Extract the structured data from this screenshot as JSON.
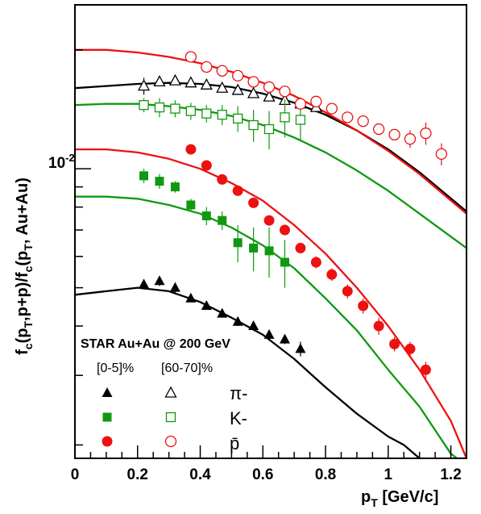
{
  "chart_data": {
    "type": "scatter",
    "xlabel": "p_T [GeV/c]",
    "ylabel": "f_c(p_T,p+p)/f_c(p_T, Au+Au)",
    "xlim": [
      0,
      1.25
    ],
    "ylim": [
      0.00185,
      0.026
    ],
    "yscale": "log",
    "x_ticks": [
      "0",
      "0.2",
      "0.4",
      "0.6",
      "0.8",
      "1",
      "1.2"
    ],
    "x_tick_values": [
      0,
      0.2,
      0.4,
      0.6,
      0.8,
      1.0,
      1.2
    ],
    "y_tick_label": "10^-2",
    "annotation": "STAR Au+Au @ 200 GeV",
    "legend": {
      "col_central": "[0-5]%",
      "col_peripheral": "[60-70]%",
      "species": [
        "π-",
        "K-",
        "p̄"
      ]
    },
    "series": [
      {
        "name": "π-",
        "centrality": "[0-5]%",
        "marker": "triangle",
        "filled": true,
        "color": "#000000",
        "x": [
          0.22,
          0.27,
          0.32,
          0.37,
          0.42,
          0.47,
          0.52,
          0.57,
          0.62,
          0.67,
          0.72
        ],
        "y": [
          0.0051,
          0.0052,
          0.005,
          0.0047,
          0.0045,
          0.0043,
          0.0041,
          0.004,
          0.0038,
          0.0037,
          0.0035
        ],
        "err": [
          0.00015,
          0.00015,
          0.00015,
          0.0001,
          0.0001,
          0.0001,
          0.0001,
          0.0001,
          0.0001,
          0.0001,
          0.00015
        ]
      },
      {
        "name": "π-",
        "centrality": "[60-70]%",
        "marker": "triangle",
        "filled": false,
        "color": "#000000",
        "x": [
          0.22,
          0.27,
          0.32,
          0.37,
          0.42,
          0.47,
          0.52,
          0.57,
          0.62,
          0.67,
          0.72,
          0.77
        ],
        "y": [
          0.0162,
          0.0166,
          0.0167,
          0.0165,
          0.0163,
          0.016,
          0.0158,
          0.0155,
          0.0152,
          0.0149,
          0.0146,
          0.0143
        ],
        "err": [
          0.0008,
          0.0004,
          0.0004,
          0.0003,
          0.0003,
          0.0003,
          0.0003,
          0.0003,
          0.0003,
          0.0003,
          0.0003,
          0.0003
        ]
      },
      {
        "name": "K-",
        "centrality": "[0-5]%",
        "marker": "square",
        "filled": true,
        "color": "#109910",
        "x": [
          0.22,
          0.27,
          0.32,
          0.37,
          0.42,
          0.47,
          0.52,
          0.57,
          0.62,
          0.67
        ],
        "y": [
          0.0096,
          0.0093,
          0.009,
          0.0081,
          0.0076,
          0.0074,
          0.0065,
          0.0063,
          0.0062,
          0.0058
        ],
        "err": [
          0.0004,
          0.0004,
          0.0003,
          0.0003,
          0.0004,
          0.0004,
          0.0007,
          0.0008,
          0.0009,
          0.0008
        ]
      },
      {
        "name": "K-",
        "centrality": "[60-70]%",
        "marker": "square",
        "filled": false,
        "color": "#109910",
        "x": [
          0.22,
          0.27,
          0.32,
          0.37,
          0.42,
          0.47,
          0.52,
          0.57,
          0.62,
          0.67,
          0.72
        ],
        "y": [
          0.0145,
          0.0143,
          0.0142,
          0.014,
          0.0138,
          0.0137,
          0.0134,
          0.0129,
          0.0126,
          0.0135,
          0.0133
        ],
        "err": [
          0.0006,
          0.0008,
          0.0007,
          0.0007,
          0.0007,
          0.0008,
          0.001,
          0.0012,
          0.0014,
          0.0015,
          0.0015
        ]
      },
      {
        "name": "p̄",
        "centrality": "[0-5]%",
        "marker": "circle",
        "filled": true,
        "color": "#ee1111",
        "x": [
          0.37,
          0.42,
          0.47,
          0.52,
          0.57,
          0.62,
          0.67,
          0.72,
          0.77,
          0.82,
          0.87,
          0.92,
          0.97,
          1.02,
          1.07,
          1.12
        ],
        "y": [
          0.0112,
          0.0102,
          0.0094,
          0.0088,
          0.0082,
          0.0074,
          0.007,
          0.0063,
          0.0058,
          0.0054,
          0.0049,
          0.0045,
          0.004,
          0.0036,
          0.0035,
          0.0031
        ],
        "err": [
          0.0002,
          0.0002,
          0.0002,
          0.0002,
          0.0002,
          0.0002,
          0.0002,
          0.0002,
          0.0002,
          0.0002,
          0.0002,
          0.0002,
          0.0002,
          0.00015,
          0.00015,
          0.00015
        ]
      },
      {
        "name": "p̄",
        "centrality": "[60-70]%",
        "marker": "circle",
        "filled": false,
        "color": "#ee1111",
        "x": [
          0.37,
          0.42,
          0.47,
          0.52,
          0.57,
          0.62,
          0.67,
          0.72,
          0.77,
          0.82,
          0.87,
          0.92,
          0.97,
          1.02,
          1.07,
          1.12,
          1.17
        ],
        "y": [
          0.0192,
          0.0181,
          0.0177,
          0.0172,
          0.0166,
          0.0161,
          0.0157,
          0.0146,
          0.0148,
          0.0142,
          0.0135,
          0.0132,
          0.0126,
          0.0122,
          0.0119,
          0.0123,
          0.0109
        ],
        "err": [
          0.0003,
          0.0003,
          0.0003,
          0.0003,
          0.0003,
          0.0003,
          0.0003,
          0.0003,
          0.0003,
          0.0003,
          0.0003,
          0.0003,
          0.0004,
          0.0004,
          0.0006,
          0.0008,
          0.0007
        ]
      }
    ],
    "curves": [
      {
        "name": "π- [60-70]% fit",
        "color": "#000000",
        "x": [
          0,
          0.1,
          0.2,
          0.3,
          0.4,
          0.5,
          0.6,
          0.7,
          0.8,
          0.9,
          1.0,
          1.1,
          1.25
        ],
        "y": [
          0.016,
          0.0162,
          0.0164,
          0.0165,
          0.0164,
          0.0161,
          0.0155,
          0.0147,
          0.0137,
          0.0125,
          0.0112,
          0.0098,
          0.0078
        ]
      },
      {
        "name": "π- [0-5]% fit",
        "color": "#000000",
        "x": [
          0,
          0.1,
          0.2,
          0.3,
          0.4,
          0.5,
          0.6,
          0.7,
          0.8,
          0.9,
          1.0,
          1.05,
          1.1
        ],
        "y": [
          0.0048,
          0.0049,
          0.005,
          0.0049,
          0.0046,
          0.0042,
          0.0038,
          0.0033,
          0.0028,
          0.0024,
          0.0021,
          0.002,
          0.00185
        ]
      },
      {
        "name": "p̄ [60-70]% fit",
        "color": "#ee1111",
        "x": [
          0,
          0.1,
          0.2,
          0.3,
          0.4,
          0.5,
          0.6,
          0.7,
          0.8,
          0.9,
          1.0,
          1.1,
          1.25
        ],
        "y": [
          0.02,
          0.02,
          0.0197,
          0.0192,
          0.0185,
          0.0176,
          0.0165,
          0.0153,
          0.0139,
          0.0125,
          0.0111,
          0.0097,
          0.0077
        ]
      },
      {
        "name": "K- [60-70]% fit",
        "color": "#109910",
        "x": [
          0,
          0.1,
          0.2,
          0.3,
          0.4,
          0.5,
          0.6,
          0.7,
          0.8,
          0.9,
          1.0,
          1.1,
          1.25
        ],
        "y": [
          0.0145,
          0.0146,
          0.0146,
          0.0144,
          0.0141,
          0.0136,
          0.0129,
          0.012,
          0.011,
          0.0099,
          0.0088,
          0.0077,
          0.0063
        ]
      },
      {
        "name": "p̄ [0-5]% fit",
        "color": "#ee1111",
        "x": [
          0,
          0.1,
          0.2,
          0.3,
          0.4,
          0.5,
          0.6,
          0.7,
          0.8,
          0.9,
          1.0,
          1.1,
          1.2,
          1.25
        ],
        "y": [
          0.0112,
          0.0112,
          0.011,
          0.0106,
          0.01,
          0.0092,
          0.0083,
          0.0072,
          0.0061,
          0.005,
          0.004,
          0.0031,
          0.0023,
          0.00185
        ]
      },
      {
        "name": "K- [0-5]% fit",
        "color": "#109910",
        "x": [
          0,
          0.1,
          0.2,
          0.3,
          0.4,
          0.5,
          0.6,
          0.7,
          0.8,
          0.9,
          1.0,
          1.1,
          1.2,
          1.22
        ],
        "y": [
          0.0085,
          0.0085,
          0.0084,
          0.0081,
          0.0077,
          0.0071,
          0.0064,
          0.0056,
          0.0047,
          0.0039,
          0.0031,
          0.0025,
          0.0019,
          0.00185
        ]
      }
    ]
  },
  "colors": {
    "red": "#ee1111",
    "green": "#109910",
    "black": "#000000"
  }
}
